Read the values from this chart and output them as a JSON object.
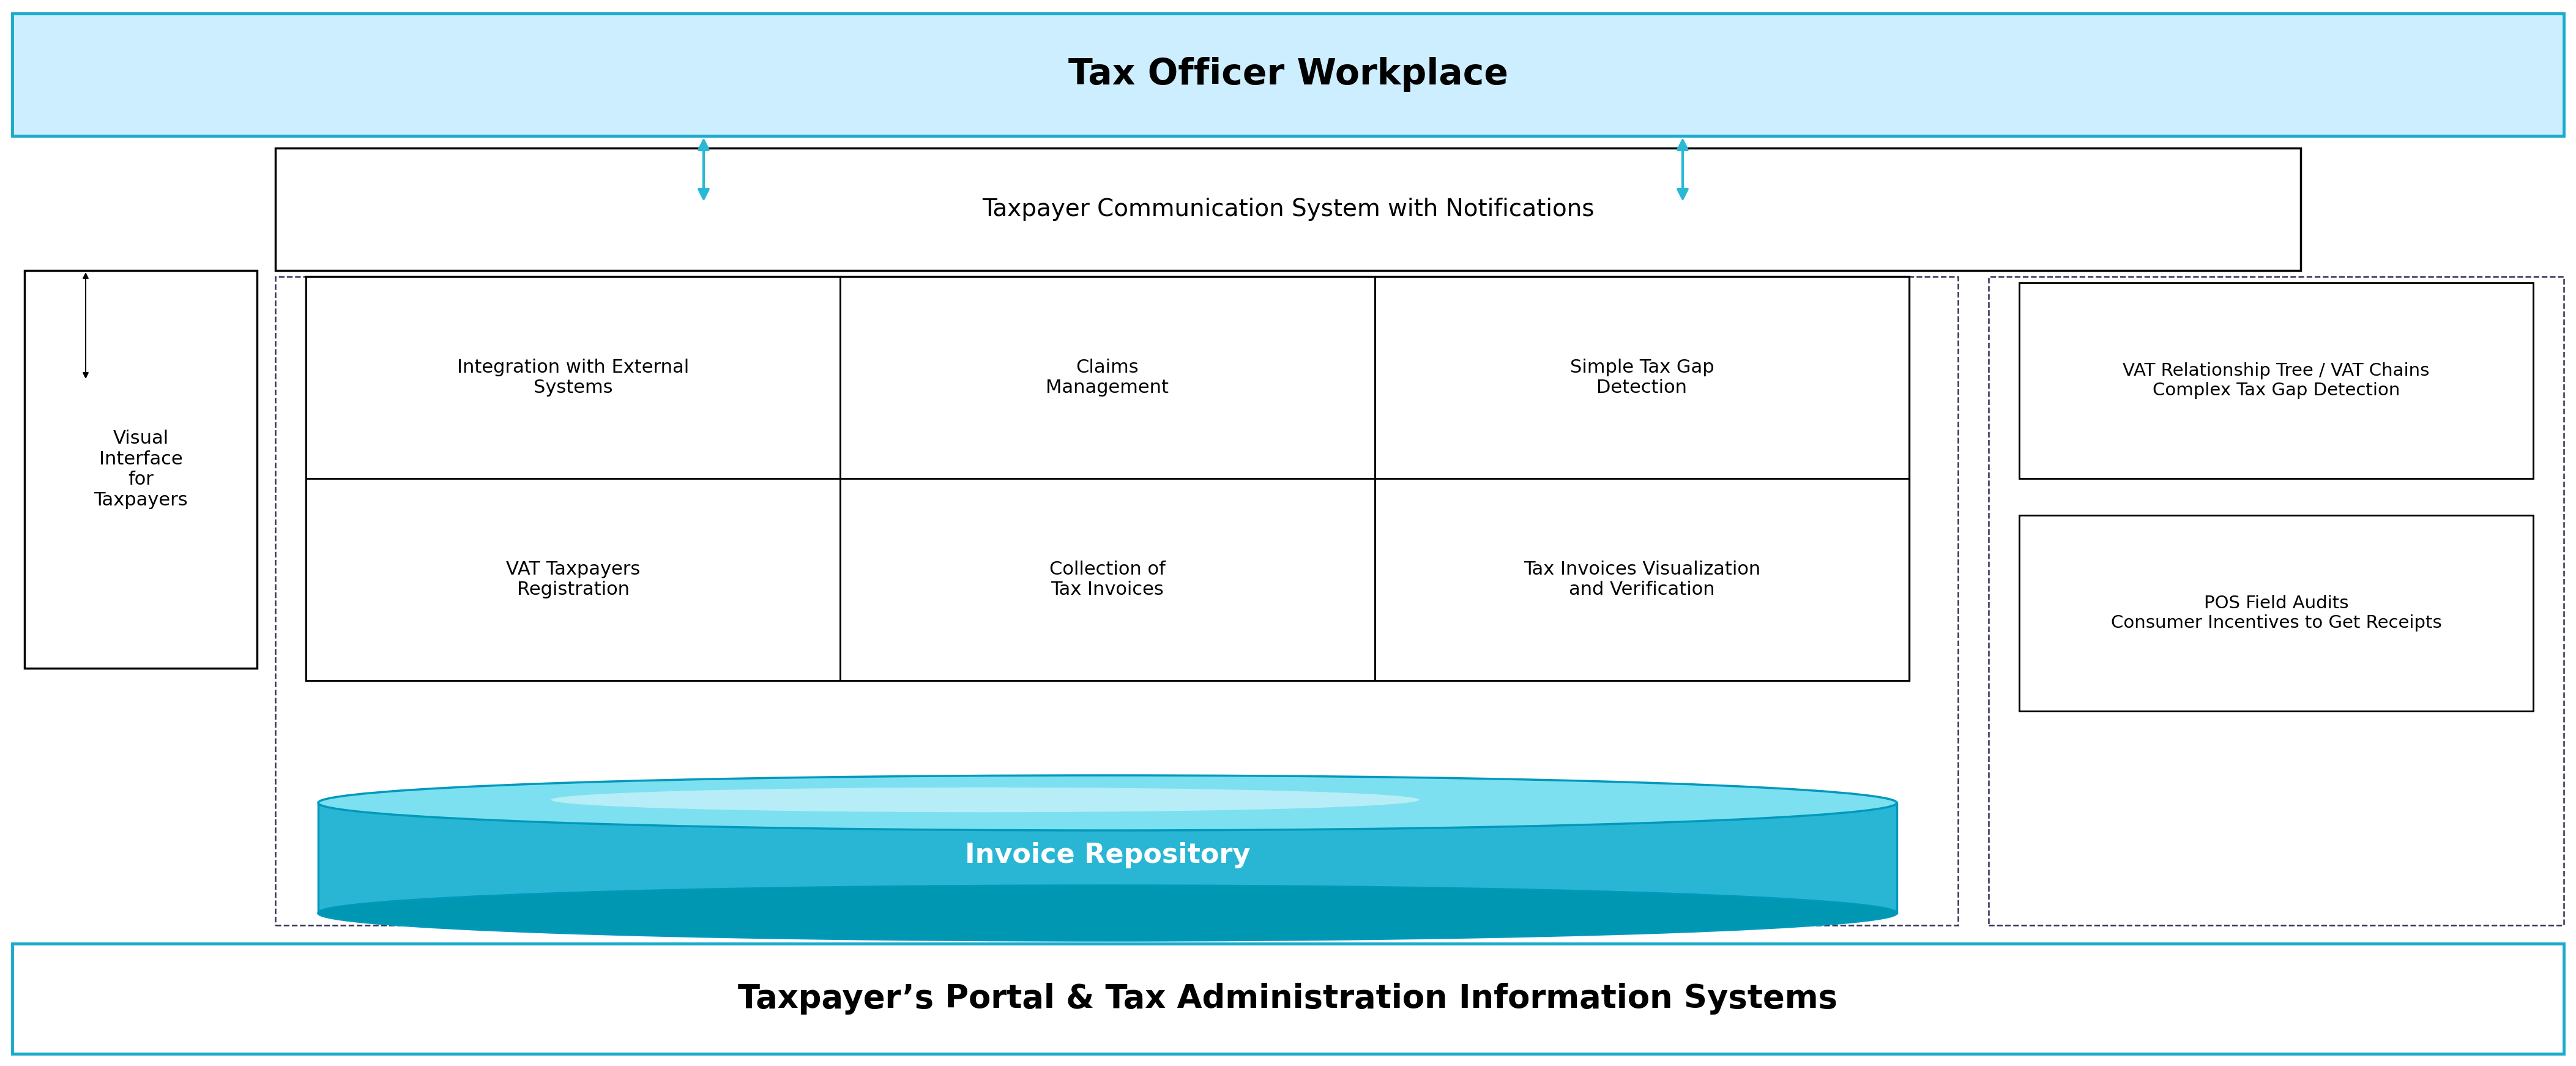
{
  "fig_width": 42.1,
  "fig_height": 17.42,
  "bg_color": "#ffffff",
  "title": "Tax Officer Workplace",
  "bottom_bar": "Taxpayer’s Portal & Tax Administration Information Systems",
  "comm_system": "Taxpayer Communication System with Notifications",
  "invoice_repo": "Invoice Repository",
  "visual_interface": "Visual\nInterface\nfor\nTaxpayers",
  "cells": [
    {
      "label": "Integration with External\nSystems",
      "col": 0,
      "row": 1
    },
    {
      "label": "Claims\nManagement",
      "col": 1,
      "row": 1
    },
    {
      "label": "Simple Tax Gap\nDetection",
      "col": 2,
      "row": 1
    },
    {
      "label": "VAT Taxpayers\nRegistration",
      "col": 0,
      "row": 0
    },
    {
      "label": "Collection of\nTax Invoices",
      "col": 1,
      "row": 0
    },
    {
      "label": "Tax Invoices Visualization\nand Verification",
      "col": 2,
      "row": 0
    }
  ],
  "right_boxes": [
    {
      "label": "VAT Relationship Tree / VAT Chains\nComplex Tax Gap Detection"
    },
    {
      "label": "POS Field Audits\nConsumer Incentives to Get Receipts"
    }
  ],
  "top_bar_bg": "#cceeff",
  "bottom_bar_bg": "#ffffff",
  "comm_bar_bg": "#ffffff",
  "cyan_fill": "#29b6d4",
  "cyan_dark": "#0097b2",
  "cyan_light": "#7de0f0",
  "cyan_border": "#0099bb",
  "white": "#ffffff",
  "black": "#000000",
  "arrow_cyan": "#29b8d6",
  "dashed_color": "#333355",
  "top_border": "#1aabcc"
}
